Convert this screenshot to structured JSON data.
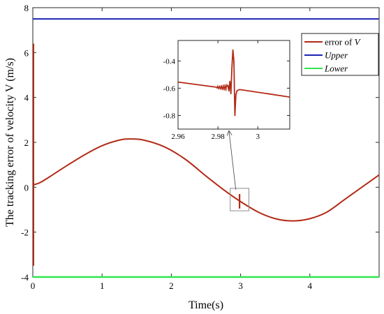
{
  "chart_data": {
    "type": "line",
    "title": "",
    "xlabel": "Time(s)",
    "ylabel": "The tracking error of velocity V (m/s)",
    "xlim": [
      0,
      5
    ],
    "ylim": [
      -4,
      8
    ],
    "xticks": [
      0,
      1,
      2,
      3,
      4
    ],
    "xtick_labels": [
      "0",
      "1",
      "2",
      "3",
      "4"
    ],
    "yticks": [
      -4,
      -2,
      0,
      2,
      4,
      6,
      8
    ],
    "ytick_labels": [
      "-4",
      "-2",
      "0",
      "2",
      "4",
      "6",
      "8"
    ],
    "grid": false,
    "legend": "top-right",
    "legend_entries": [
      {
        "prefix": "error of ",
        "var": "V"
      },
      {
        "prefix": "",
        "var": "Upper"
      },
      {
        "prefix": "",
        "var": "Lower"
      }
    ],
    "series": [
      {
        "name": "error of V",
        "color": "#b22a16",
        "x": [
          0,
          0.1,
          0.25,
          0.5,
          0.75,
          1.0,
          1.25,
          1.4,
          1.6,
          1.9,
          2.2,
          2.5,
          2.75,
          2.98,
          3.25,
          3.5,
          3.75,
          4.0,
          4.25,
          4.5,
          4.75,
          5.0
        ],
        "y": [
          0.1,
          0.2,
          0.48,
          0.98,
          1.45,
          1.85,
          2.1,
          2.15,
          2.1,
          1.8,
          1.25,
          0.5,
          -0.1,
          -0.6,
          -1.1,
          -1.4,
          -1.5,
          -1.4,
          -1.1,
          -0.55,
          0.0,
          0.55
        ],
        "initial_transient": [
          6.4,
          -3.5
        ],
        "spike_at_x": 2.985,
        "spike_range": [
          -0.95,
          -0.3
        ]
      },
      {
        "name": "Upper",
        "color": "#1c24b4",
        "x": [
          0,
          5
        ],
        "y": [
          7.5,
          7.5
        ]
      },
      {
        "name": "Lower",
        "color": "#2ee64c",
        "x": [
          0,
          5
        ],
        "y": [
          -4,
          -4
        ]
      }
    ],
    "inset": {
      "xlim": [
        2.96,
        3.016
      ],
      "ylim": [
        -0.9,
        -0.25
      ],
      "xticks": [
        2.96,
        2.98,
        3.0
      ],
      "xtick_labels": [
        "2.96",
        "2.98",
        "3"
      ],
      "yticks": [
        -0.8,
        -0.6,
        -0.4
      ],
      "ytick_labels": [
        "-0.8",
        "-0.6",
        "-0.4"
      ],
      "series": {
        "x": [
          2.96,
          2.983,
          2.985,
          2.9855,
          2.986,
          2.9865,
          2.987,
          2.9875,
          2.988,
          2.9885,
          2.989,
          2.9895,
          2.99,
          2.991,
          3.016
        ],
        "y": [
          -0.555,
          -0.6,
          -0.58,
          -0.62,
          -0.55,
          -0.64,
          -0.45,
          -0.32,
          -0.4,
          -0.8,
          -0.65,
          -0.62,
          -0.615,
          -0.61,
          -0.665
        ]
      },
      "zoom_box": {
        "xlim": [
          2.85,
          3.12
        ],
        "ylim": [
          -1.05,
          -0.05
        ]
      }
    }
  }
}
